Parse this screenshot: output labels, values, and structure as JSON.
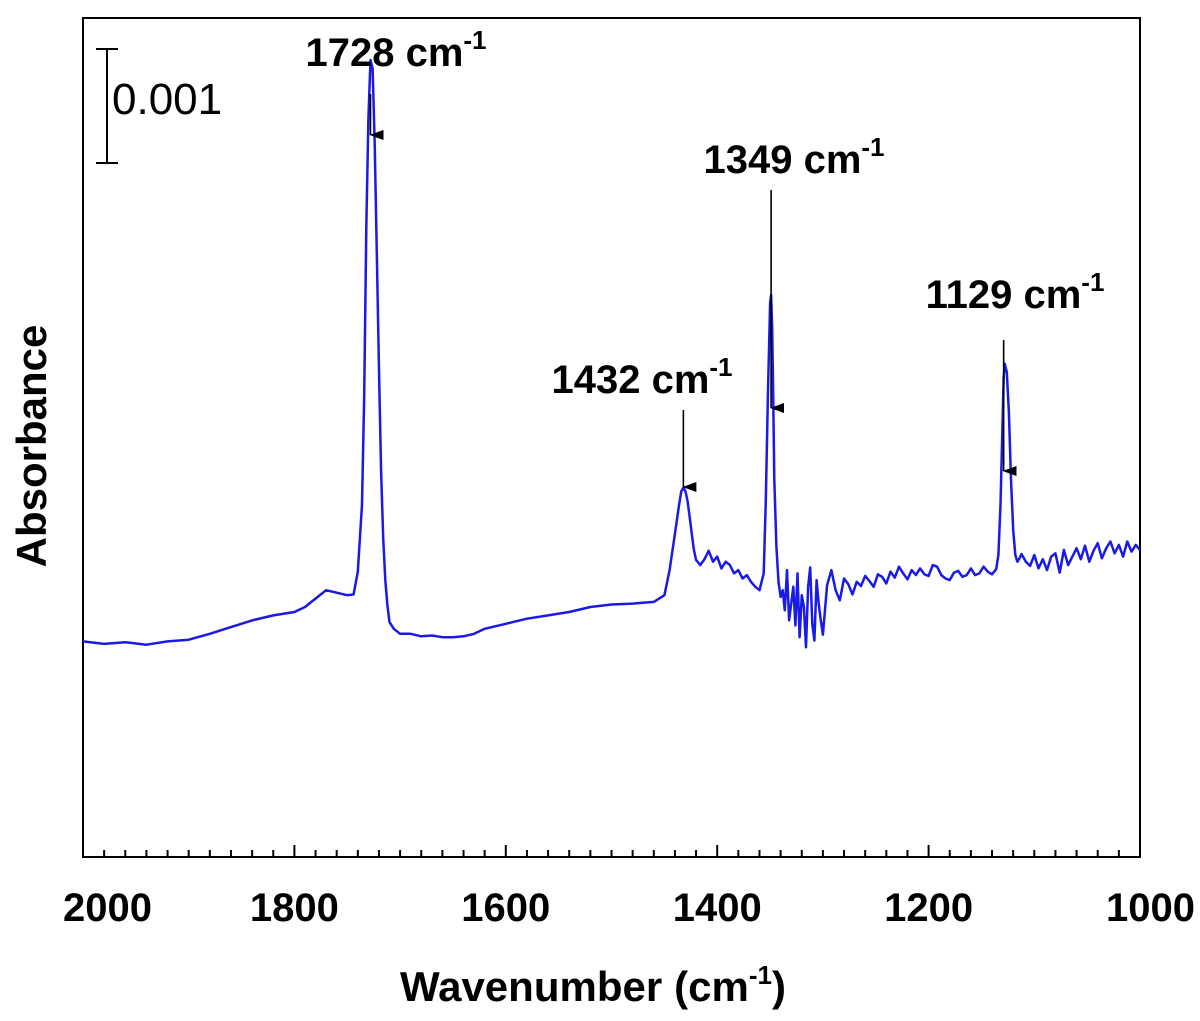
{
  "chart_data": {
    "type": "line",
    "title": "",
    "xlabel": "Wavenumber",
    "xlabel_unit": "(cm",
    "xlabel_unit_exp": "-1",
    "xlabel_unit_close": ")",
    "ylabel": "Absorbance",
    "xlim": [
      2000,
      1000
    ],
    "x_reversed": true,
    "ylim": [
      0.0,
      0.01
    ],
    "y_ticks_shown": false,
    "x_ticks": [
      2000,
      1800,
      1600,
      1400,
      1200,
      1000
    ],
    "x_tick_labels": [
      "2000",
      "1800",
      "1600",
      "1400",
      "1200",
      "1000"
    ],
    "x_minor_step": 20,
    "grid": false,
    "scale_bar": {
      "label": "0.001",
      "value": 0.001
    },
    "series": [
      {
        "name": "spectrum",
        "color": "#1a1ae6",
        "x": [
          2000,
          1980,
          1960,
          1940,
          1920,
          1900,
          1880,
          1860,
          1840,
          1820,
          1800,
          1790,
          1780,
          1770,
          1760,
          1750,
          1744,
          1740,
          1736,
          1734,
          1732,
          1730,
          1728,
          1726,
          1724,
          1722,
          1720,
          1718,
          1716,
          1714,
          1712,
          1710,
          1706,
          1700,
          1690,
          1680,
          1670,
          1660,
          1650,
          1640,
          1630,
          1620,
          1610,
          1600,
          1580,
          1560,
          1540,
          1520,
          1500,
          1480,
          1460,
          1450,
          1445,
          1440,
          1436,
          1434,
          1432,
          1430,
          1428,
          1426,
          1424,
          1422,
          1420,
          1416,
          1412,
          1408,
          1404,
          1400,
          1396,
          1392,
          1388,
          1384,
          1380,
          1376,
          1372,
          1368,
          1364,
          1360,
          1356,
          1354,
          1352,
          1350,
          1349,
          1348,
          1347,
          1346,
          1344,
          1342,
          1340,
          1338,
          1336,
          1334,
          1332,
          1330,
          1328,
          1326,
          1324,
          1322,
          1320,
          1318,
          1316,
          1314,
          1312,
          1310,
          1308,
          1306,
          1304,
          1302,
          1300,
          1296,
          1292,
          1288,
          1284,
          1280,
          1276,
          1272,
          1268,
          1264,
          1260,
          1256,
          1252,
          1248,
          1244,
          1240,
          1236,
          1232,
          1228,
          1224,
          1220,
          1216,
          1212,
          1208,
          1204,
          1200,
          1196,
          1192,
          1188,
          1184,
          1180,
          1176,
          1172,
          1168,
          1164,
          1160,
          1156,
          1152,
          1148,
          1144,
          1140,
          1136,
          1134,
          1132,
          1130,
          1129,
          1128,
          1126,
          1124,
          1122,
          1120,
          1118,
          1116,
          1114,
          1112,
          1108,
          1104,
          1100,
          1096,
          1092,
          1088,
          1084,
          1080,
          1076,
          1072,
          1068,
          1064,
          1060,
          1056,
          1052,
          1048,
          1044,
          1040,
          1036,
          1032,
          1028,
          1024,
          1020,
          1016,
          1012,
          1008,
          1004,
          1000
        ],
        "y": [
          0.00257,
          0.00254,
          0.00256,
          0.00253,
          0.00257,
          0.00259,
          0.00266,
          0.00274,
          0.00282,
          0.00288,
          0.00292,
          0.00298,
          0.00308,
          0.00318,
          0.00315,
          0.00312,
          0.00313,
          0.0034,
          0.0042,
          0.0055,
          0.0075,
          0.0088,
          0.0095,
          0.0094,
          0.0085,
          0.0072,
          0.0058,
          0.0046,
          0.0038,
          0.0033,
          0.003,
          0.0028,
          0.00272,
          0.00266,
          0.00266,
          0.00263,
          0.00264,
          0.00262,
          0.00262,
          0.00263,
          0.00266,
          0.00272,
          0.00275,
          0.00278,
          0.00284,
          0.00288,
          0.00292,
          0.00298,
          0.00301,
          0.00302,
          0.00304,
          0.00312,
          0.00342,
          0.00385,
          0.0042,
          0.00436,
          0.0044,
          0.00436,
          0.00424,
          0.00405,
          0.00385,
          0.00366,
          0.00354,
          0.00348,
          0.00355,
          0.00365,
          0.00352,
          0.00358,
          0.00344,
          0.00352,
          0.00348,
          0.00338,
          0.00342,
          0.00332,
          0.00336,
          0.00328,
          0.00322,
          0.00318,
          0.00338,
          0.00425,
          0.0055,
          0.0066,
          0.0067,
          0.0063,
          0.0055,
          0.0045,
          0.0037,
          0.00328,
          0.0031,
          0.00318,
          0.00294,
          0.00342,
          0.00282,
          0.00302,
          0.00322,
          0.00276,
          0.00338,
          0.00262,
          0.00312,
          0.00298,
          0.0025,
          0.00322,
          0.00345,
          0.00278,
          0.00258,
          0.0033,
          0.00302,
          0.00282,
          0.00265,
          0.00324,
          0.00342,
          0.00318,
          0.00306,
          0.00332,
          0.00325,
          0.00313,
          0.00328,
          0.00323,
          0.00335,
          0.00329,
          0.00322,
          0.00337,
          0.00334,
          0.00326,
          0.0034,
          0.00333,
          0.00346,
          0.00338,
          0.00331,
          0.00342,
          0.00336,
          0.00344,
          0.00337,
          0.00335,
          0.00348,
          0.00346,
          0.00336,
          0.00332,
          0.0033,
          0.00339,
          0.00341,
          0.00334,
          0.00336,
          0.00344,
          0.00336,
          0.00338,
          0.00346,
          0.0034,
          0.00337,
          0.00343,
          0.0036,
          0.0042,
          0.0052,
          0.0057,
          0.00588,
          0.00578,
          0.0053,
          0.0045,
          0.0039,
          0.0036,
          0.00352,
          0.00356,
          0.00361,
          0.00352,
          0.00347,
          0.0036,
          0.00344,
          0.00355,
          0.00342,
          0.00358,
          0.00362,
          0.00339,
          0.00366,
          0.00348,
          0.00358,
          0.00368,
          0.00355,
          0.00371,
          0.00352,
          0.00365,
          0.00374,
          0.00356,
          0.00368,
          0.00376,
          0.00362,
          0.00372,
          0.00358,
          0.00376,
          0.00364,
          0.00372,
          0.00366
        ]
      }
    ],
    "annotations": [
      {
        "x": 1728,
        "label": "1728 cm",
        "sup": "-1"
      },
      {
        "x": 1432,
        "label": "1432 cm",
        "sup": "-1"
      },
      {
        "x": 1349,
        "label": "1349 cm",
        "sup": "-1"
      },
      {
        "x": 1129,
        "label": "1129 cm",
        "sup": "-1"
      }
    ]
  }
}
